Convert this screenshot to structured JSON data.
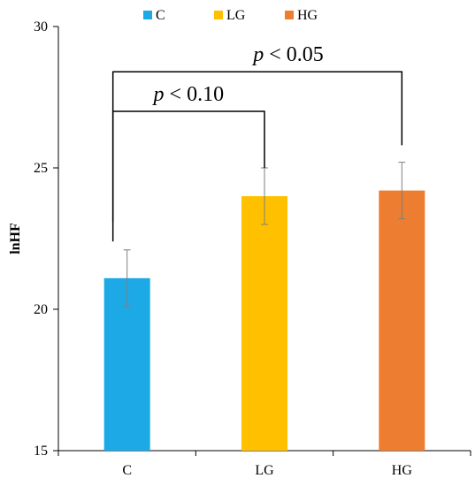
{
  "chart_data": {
    "type": "bar",
    "categories": [
      "C",
      "LG",
      "HG"
    ],
    "values": [
      21.1,
      24.0,
      24.2
    ],
    "errors": [
      1.0,
      1.0,
      1.0
    ],
    "colors": [
      "#1CA9E6",
      "#FFC000",
      "#ED7D31"
    ],
    "ylabel": "lnHF",
    "ylim": [
      15,
      30
    ],
    "yticks": [
      15,
      20,
      25,
      30
    ],
    "grid": false,
    "legend": {
      "position": "top",
      "entries": [
        {
          "label": "C",
          "color": "#1CA9E6"
        },
        {
          "label": "LG",
          "color": "#FFC000"
        },
        {
          "label": "HG",
          "color": "#ED7D31"
        }
      ]
    },
    "annotations": [
      {
        "from": "C",
        "to": "LG",
        "p_symbol": "p",
        "p_text": " < 0.10",
        "bracket_level": 27.0,
        "left_end": 23.1,
        "right_end": 25.0
      },
      {
        "from": "C",
        "to": "HG",
        "p_symbol": "p",
        "p_text": " < 0.05",
        "bracket_level": 28.4,
        "left_end": 22.4,
        "right_end": 25.8
      }
    ]
  }
}
